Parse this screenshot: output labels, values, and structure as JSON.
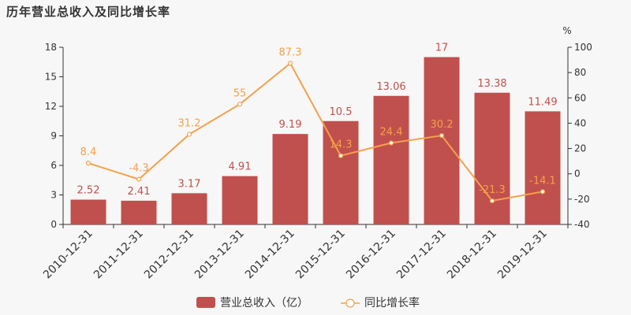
{
  "chart_data": {
    "type": "bar",
    "title": "历年营业总收入及同比增长率",
    "categories": [
      "2010-12-31",
      "2011-12-31",
      "2012-12-31",
      "2013-12-31",
      "2014-12-31",
      "2015-12-31",
      "2016-12-31",
      "2017-12-31",
      "2018-12-31",
      "2019-12-31"
    ],
    "series": [
      {
        "name": "营业总收入（亿）",
        "type": "bar",
        "axis": "left",
        "values": [
          2.52,
          2.41,
          3.17,
          4.91,
          9.19,
          10.5,
          13.06,
          17,
          13.38,
          11.49
        ],
        "labels": [
          "2.52",
          "2.41",
          "3.17",
          "4.91",
          "9.19",
          "10.5",
          "13.06",
          "17",
          "13.38",
          "11.49"
        ],
        "color": "#c0504d"
      },
      {
        "name": "同比增长率",
        "type": "line",
        "axis": "right",
        "values": [
          8.4,
          -4.3,
          31.2,
          55,
          87.3,
          14.3,
          24.4,
          30.2,
          -21.3,
          -14.1
        ],
        "labels": [
          "8.4",
          "-4.3",
          "31.2",
          "55",
          "87.3",
          "14.3",
          "24.4",
          "30.2",
          "-21.3",
          "-14.1"
        ],
        "color": "#f5a04b"
      }
    ],
    "y_left": {
      "min": 0,
      "max": 18,
      "ticks": [
        "0",
        "3",
        "6",
        "9",
        "12",
        "15",
        "18"
      ]
    },
    "y_right": {
      "min": -40,
      "max": 100,
      "ticks": [
        "-40",
        "-20",
        "0",
        "20",
        "40",
        "60",
        "80",
        "100"
      ],
      "unit": "%"
    },
    "grid": false,
    "legend_position": "bottom-center"
  }
}
